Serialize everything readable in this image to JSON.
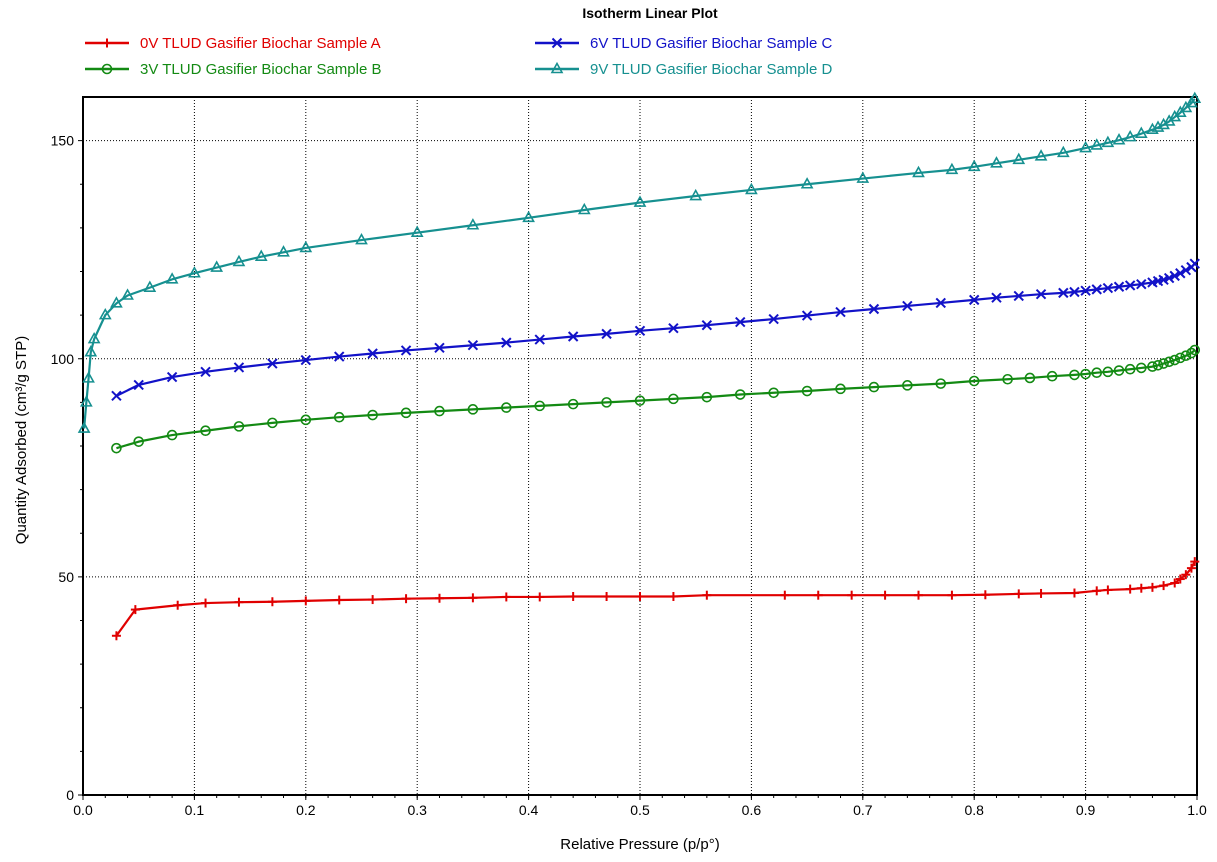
{
  "chart_data": {
    "type": "line",
    "title": "Isotherm Linear Plot",
    "xlabel": "Relative Pressure (p/p°)",
    "ylabel": "Quantity Adsorbed (cm³/g STP)",
    "xlim": [
      0,
      1.0
    ],
    "ylim": [
      0,
      160
    ],
    "xticks": [
      "0.0",
      "0.1",
      "0.2",
      "0.3",
      "0.4",
      "0.5",
      "0.6",
      "0.7",
      "0.8",
      "0.9",
      "1.0"
    ],
    "yticks": [
      "0",
      "50",
      "100",
      "150"
    ],
    "grid": true,
    "legend_position": "top",
    "series": [
      {
        "name": "0V TLUD Gasifier Biochar Sample A",
        "color": "#e00000",
        "marker": "plus",
        "x": [
          0.03,
          0.047,
          0.085,
          0.11,
          0.14,
          0.17,
          0.2,
          0.23,
          0.26,
          0.29,
          0.32,
          0.35,
          0.38,
          0.41,
          0.44,
          0.47,
          0.5,
          0.53,
          0.56,
          0.63,
          0.66,
          0.69,
          0.72,
          0.75,
          0.78,
          0.81,
          0.84,
          0.86,
          0.89,
          0.91,
          0.92,
          0.94,
          0.95,
          0.96,
          0.97,
          0.98,
          0.985,
          0.99,
          0.995,
          0.998
        ],
        "y": [
          36.5,
          42.5,
          43.5,
          44,
          44.2,
          44.3,
          44.5,
          44.7,
          44.8,
          45,
          45.1,
          45.2,
          45.4,
          45.4,
          45.5,
          45.5,
          45.5,
          45.5,
          45.8,
          45.8,
          45.8,
          45.8,
          45.8,
          45.8,
          45.8,
          45.9,
          46.1,
          46.2,
          46.3,
          46.8,
          47.0,
          47.2,
          47.4,
          47.6,
          48.0,
          48.6,
          49.5,
          50.5,
          52.0,
          53.5
        ]
      },
      {
        "name": "3V TLUD Gasifier Biochar Sample B",
        "color": "#138a13",
        "marker": "circle",
        "x": [
          0.03,
          0.05,
          0.08,
          0.11,
          0.14,
          0.17,
          0.2,
          0.23,
          0.26,
          0.29,
          0.32,
          0.35,
          0.38,
          0.41,
          0.44,
          0.47,
          0.5,
          0.53,
          0.56,
          0.59,
          0.62,
          0.65,
          0.68,
          0.71,
          0.74,
          0.77,
          0.8,
          0.83,
          0.85,
          0.87,
          0.89,
          0.9,
          0.91,
          0.92,
          0.93,
          0.94,
          0.95,
          0.96,
          0.965,
          0.97,
          0.975,
          0.98,
          0.985,
          0.99,
          0.995,
          0.998
        ],
        "y": [
          79.5,
          81,
          82.5,
          83.5,
          84.5,
          85.3,
          86,
          86.6,
          87.1,
          87.6,
          88,
          88.4,
          88.8,
          89.2,
          89.6,
          90,
          90.4,
          90.8,
          91.2,
          91.8,
          92.2,
          92.6,
          93.1,
          93.5,
          93.9,
          94.3,
          94.9,
          95.3,
          95.6,
          96,
          96.3,
          96.5,
          96.8,
          97,
          97.3,
          97.6,
          97.9,
          98.2,
          98.5,
          98.9,
          99.3,
          99.7,
          100.2,
          100.7,
          101.3,
          102
        ]
      },
      {
        "name": "6V TLUD Gasifier Biochar Sample C",
        "color": "#1212c8",
        "marker": "x",
        "x": [
          0.03,
          0.05,
          0.08,
          0.11,
          0.14,
          0.17,
          0.2,
          0.23,
          0.26,
          0.29,
          0.32,
          0.35,
          0.38,
          0.41,
          0.44,
          0.47,
          0.5,
          0.53,
          0.56,
          0.59,
          0.62,
          0.65,
          0.68,
          0.71,
          0.74,
          0.77,
          0.8,
          0.82,
          0.84,
          0.86,
          0.88,
          0.89,
          0.9,
          0.91,
          0.92,
          0.93,
          0.94,
          0.95,
          0.96,
          0.965,
          0.97,
          0.975,
          0.98,
          0.985,
          0.99,
          0.995,
          0.998
        ],
        "y": [
          91.5,
          94,
          95.8,
          97,
          98,
          98.9,
          99.7,
          100.5,
          101.2,
          101.9,
          102.5,
          103.1,
          103.7,
          104.4,
          105.1,
          105.7,
          106.4,
          107,
          107.7,
          108.4,
          109.1,
          109.9,
          110.7,
          111.4,
          112.1,
          112.8,
          113.5,
          114,
          114.4,
          114.8,
          115.1,
          115.3,
          115.6,
          115.9,
          116.2,
          116.5,
          116.8,
          117.1,
          117.5,
          117.8,
          118.1,
          118.5,
          119,
          119.6,
          120.3,
          121.0,
          121.8
        ]
      },
      {
        "name": "9V TLUD Gasifier Biochar Sample D",
        "color": "#169090",
        "marker": "triangle",
        "x": [
          0.001,
          0.003,
          0.005,
          0.007,
          0.01,
          0.02,
          0.03,
          0.04,
          0.06,
          0.08,
          0.1,
          0.12,
          0.14,
          0.16,
          0.18,
          0.2,
          0.25,
          0.3,
          0.35,
          0.4,
          0.45,
          0.5,
          0.55,
          0.6,
          0.65,
          0.7,
          0.75,
          0.78,
          0.8,
          0.82,
          0.84,
          0.86,
          0.88,
          0.9,
          0.91,
          0.92,
          0.93,
          0.94,
          0.95,
          0.96,
          0.965,
          0.97,
          0.975,
          0.98,
          0.985,
          0.99,
          0.995,
          0.998
        ],
        "y": [
          84,
          90,
          95.5,
          101.5,
          104.5,
          110,
          112.7,
          114.5,
          116.3,
          118.2,
          119.6,
          120.9,
          122.2,
          123.4,
          124.4,
          125.4,
          127.2,
          128.9,
          130.6,
          132.3,
          134.1,
          135.8,
          137.3,
          138.7,
          140,
          141.3,
          142.6,
          143.3,
          144,
          144.8,
          145.6,
          146.4,
          147.2,
          148.3,
          148.9,
          149.5,
          150.1,
          150.8,
          151.6,
          152.5,
          153,
          153.6,
          154.4,
          155.4,
          156.4,
          157.5,
          158.6,
          159.6
        ]
      }
    ]
  }
}
